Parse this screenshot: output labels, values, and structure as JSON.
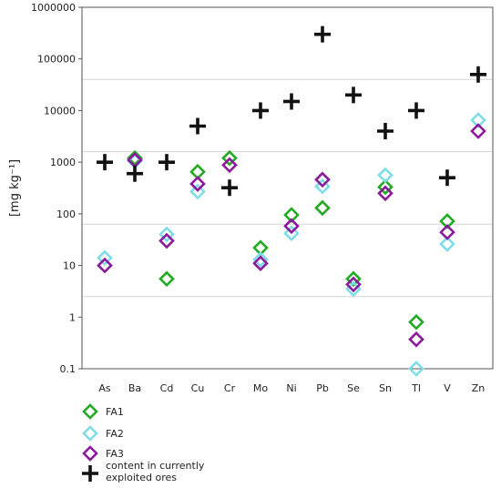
{
  "chart_data": {
    "type": "scatter",
    "title": "",
    "xlabel": "",
    "ylabel": "[mg kg⁻¹]",
    "yscale": "log",
    "ylim": [
      0.1,
      1000000
    ],
    "yticks": [
      "0.1",
      "1",
      "10",
      "100",
      "1000",
      "10000",
      "100000",
      "1000000"
    ],
    "grid": "horizontal lines at 2.5, 63, 1600, 40000",
    "categories": [
      "As",
      "Ba",
      "Cd",
      "Cu",
      "Cr",
      "Mo",
      "Ni",
      "Pb",
      "Se",
      "Sn",
      "Tl",
      "V",
      "Zn"
    ],
    "series": [
      {
        "name": "FA1",
        "marker": "diamond",
        "color": "#22aa22",
        "values": [
          null,
          1200,
          5.5,
          650,
          1200,
          22,
          95,
          130,
          5.5,
          330,
          0.8,
          72,
          null
        ]
      },
      {
        "name": "FA2",
        "marker": "diamond",
        "color": "#7fdde8",
        "values": [
          14,
          1050,
          40,
          270,
          null,
          13,
          42,
          340,
          3.5,
          560,
          0.1,
          26,
          6500
        ]
      },
      {
        "name": "FA3",
        "marker": "diamond",
        "color": "#8b1a9c",
        "values": [
          10,
          1100,
          30,
          380,
          880,
          11,
          58,
          460,
          4.3,
          250,
          0.37,
          44,
          4000
        ]
      },
      {
        "name": "content in currently exploited ores",
        "marker": "plus",
        "color": "#111111",
        "values": [
          1000,
          600,
          1000,
          5000,
          320,
          10000,
          15000,
          300000,
          20000,
          4000,
          10000,
          500,
          50000
        ]
      }
    ],
    "legend": {
      "position": "bottom-left",
      "entries": [
        {
          "label": "FA1",
          "marker": "diamond",
          "color": "#22aa22"
        },
        {
          "label": "FA2",
          "marker": "diamond",
          "color": "#7fdde8"
        },
        {
          "label": "FA3",
          "marker": "diamond",
          "color": "#8b1a9c"
        },
        {
          "label": "content in currently\nexploited ores",
          "marker": "plus",
          "color": "#111111"
        }
      ]
    }
  }
}
